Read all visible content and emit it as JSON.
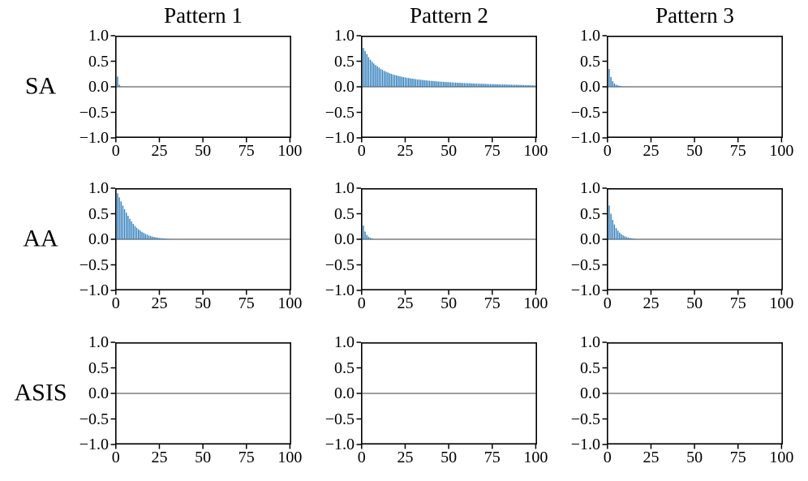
{
  "figure": {
    "background": "#ffffff",
    "text_color": "#000000",
    "bar_color": "#2e7ebd",
    "zero_line_color": "#7f7f7f",
    "spine_color": "#000000",
    "col_titles": [
      "Pattern 1",
      "Pattern 2",
      "Pattern 3"
    ],
    "row_labels": [
      "SA",
      "AA",
      "ASIS"
    ],
    "x_ticks": {
      "labels": [
        "0",
        "25",
        "50",
        "75",
        "100"
      ],
      "values": [
        0,
        25,
        50,
        75,
        100
      ]
    },
    "y_ticks": {
      "labels": [
        "1.0",
        "0.5",
        "0.0",
        "−0.5",
        "−1.0"
      ],
      "values": [
        1,
        0.5,
        0,
        -0.5,
        -1
      ]
    },
    "xlim": [
      0,
      100
    ],
    "ylim": [
      -1.0,
      1.0
    ]
  },
  "chart_data": [
    {
      "type": "bar",
      "row": "SA",
      "col": "Pattern 1",
      "lag_start": 1,
      "values": [
        0.2,
        0.04,
        0.01
      ]
    },
    {
      "type": "bar",
      "row": "SA",
      "col": "Pattern 2",
      "lag_start": 1,
      "values": [
        0.76,
        0.7,
        0.64,
        0.58,
        0.53,
        0.49,
        0.455,
        0.425,
        0.4,
        0.375,
        0.35,
        0.33,
        0.31,
        0.295,
        0.28,
        0.265,
        0.253,
        0.242,
        0.232,
        0.222,
        0.213,
        0.205,
        0.197,
        0.19,
        0.183,
        0.177,
        0.171,
        0.165,
        0.16,
        0.155,
        0.15,
        0.145,
        0.141,
        0.137,
        0.133,
        0.129,
        0.125,
        0.122,
        0.119,
        0.116,
        0.113,
        0.11,
        0.107,
        0.104,
        0.102,
        0.099,
        0.097,
        0.094,
        0.092,
        0.09,
        0.088,
        0.086,
        0.084,
        0.082,
        0.08,
        0.078,
        0.077,
        0.075,
        0.073,
        0.072,
        0.07,
        0.069,
        0.067,
        0.066,
        0.064,
        0.063,
        0.062,
        0.06,
        0.059,
        0.058,
        0.057,
        0.055,
        0.054,
        0.053,
        0.052,
        0.051,
        0.05,
        0.049,
        0.048,
        0.047,
        0.046,
        0.045,
        0.044,
        0.043,
        0.042,
        0.041,
        0.04,
        0.039,
        0.038,
        0.037,
        0.036,
        0.035,
        0.034,
        0.033,
        0.032,
        0.031,
        0.03,
        0.029,
        0.028,
        0.027
      ]
    },
    {
      "type": "bar",
      "row": "SA",
      "col": "Pattern 3",
      "lag_start": 1,
      "values": [
        0.35,
        0.19,
        0.11,
        0.065,
        0.04,
        0.028,
        0.019,
        0.013,
        0.009,
        0.006,
        0.004,
        0.003
      ]
    },
    {
      "type": "bar",
      "row": "AA",
      "col": "Pattern 1",
      "lag_start": 1,
      "values": [
        0.9,
        0.82,
        0.74,
        0.66,
        0.59,
        0.52,
        0.46,
        0.4,
        0.35,
        0.3,
        0.26,
        0.225,
        0.195,
        0.17,
        0.145,
        0.125,
        0.105,
        0.09,
        0.075,
        0.063,
        0.053,
        0.045,
        0.038,
        0.032,
        0.027,
        0.022,
        0.018,
        0.015,
        0.012,
        0.01,
        0.008,
        0.007,
        0.006,
        0.005,
        0.004
      ]
    },
    {
      "type": "bar",
      "row": "AA",
      "col": "Pattern 2",
      "lag_start": 1,
      "values": [
        0.27,
        0.15,
        0.085,
        0.05,
        0.03,
        0.018,
        0.01
      ]
    },
    {
      "type": "bar",
      "row": "AA",
      "col": "Pattern 3",
      "lag_start": 1,
      "values": [
        0.66,
        0.5,
        0.38,
        0.29,
        0.22,
        0.17,
        0.13,
        0.1,
        0.076,
        0.058,
        0.044,
        0.033,
        0.025,
        0.019,
        0.014,
        0.011,
        0.008,
        0.006
      ]
    },
    {
      "type": "bar",
      "row": "ASIS",
      "col": "Pattern 1",
      "lag_start": 1,
      "values": [],
      "note": "no visible bars (all ~0)"
    },
    {
      "type": "bar",
      "row": "ASIS",
      "col": "Pattern 2",
      "lag_start": 1,
      "values": [],
      "note": "no visible bars (all ~0)"
    },
    {
      "type": "bar",
      "row": "ASIS",
      "col": "Pattern 3",
      "lag_start": 1,
      "values": [],
      "note": "no visible bars (all ~0)"
    }
  ]
}
